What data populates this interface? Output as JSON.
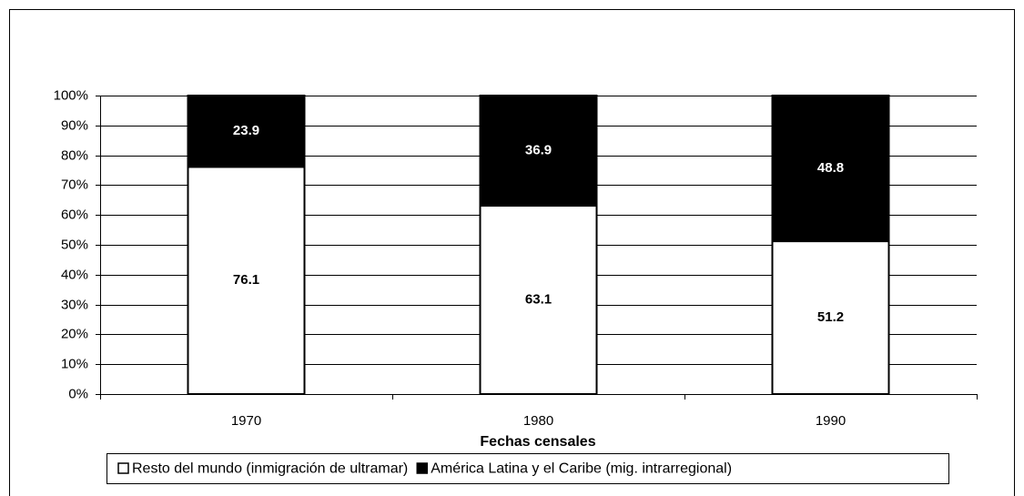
{
  "chart_data": {
    "type": "stacked_bar",
    "categories": [
      "1970",
      "1980",
      "1990"
    ],
    "series": [
      {
        "name": "Resto del mundo (inmigración de ultramar)",
        "color": "#ffffff",
        "values": [
          76.1,
          63.1,
          51.2
        ]
      },
      {
        "name": "América Latina y el Caribe (mig. intrarregional)",
        "color": "#000000",
        "values": [
          23.9,
          36.9,
          48.8
        ]
      }
    ],
    "xlabel": "Fechas censales",
    "ylim": [
      0,
      100
    ],
    "yticks": [
      {
        "value": 0,
        "label": "0%"
      },
      {
        "value": 10,
        "label": "10%"
      },
      {
        "value": 20,
        "label": "20%"
      },
      {
        "value": 30,
        "label": "30%"
      },
      {
        "value": 40,
        "label": "40%"
      },
      {
        "value": 50,
        "label": "50%"
      },
      {
        "value": 60,
        "label": "60%"
      },
      {
        "value": 70,
        "label": "70%"
      },
      {
        "value": 80,
        "label": "80%"
      },
      {
        "value": 90,
        "label": "90%"
      },
      {
        "value": 100,
        "label": "100%"
      }
    ],
    "grid": true,
    "legend": "bottom"
  }
}
